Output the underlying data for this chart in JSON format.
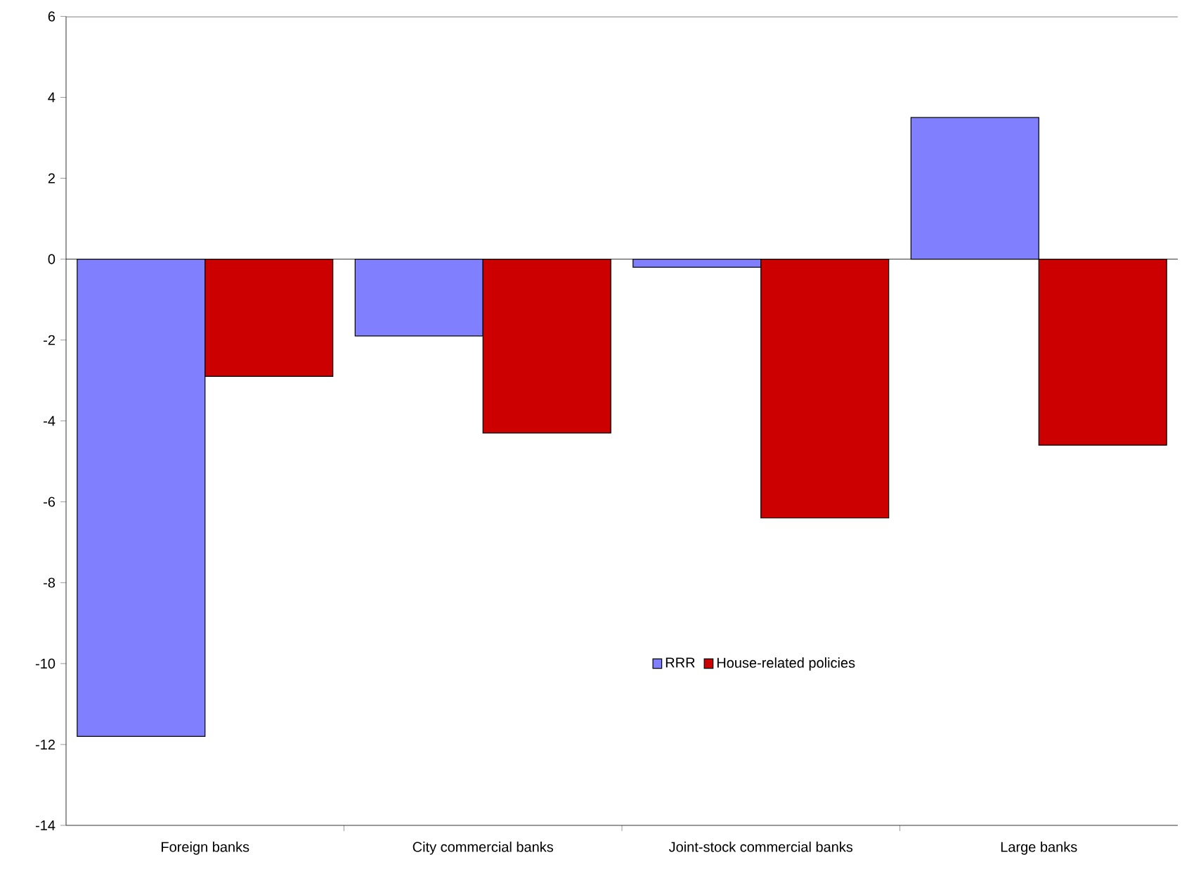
{
  "chart_data": {
    "type": "bar",
    "categories": [
      "Foreign banks",
      "City commercial banks",
      "Joint-stock commercial banks",
      "Large banks"
    ],
    "series": [
      {
        "name": "RRR",
        "color": "#8080ff",
        "values": [
          -11.8,
          -1.9,
          -0.2,
          3.5
        ]
      },
      {
        "name": "House-related policies",
        "color": "#cc0000",
        "values": [
          -2.9,
          -4.3,
          -6.4,
          -4.6
        ]
      }
    ],
    "ylim": [
      -14,
      6
    ],
    "yticks": [
      -14,
      -12,
      -10,
      -8,
      -6,
      -4,
      -2,
      0,
      2,
      4,
      6
    ],
    "legend": "bottom right"
  }
}
